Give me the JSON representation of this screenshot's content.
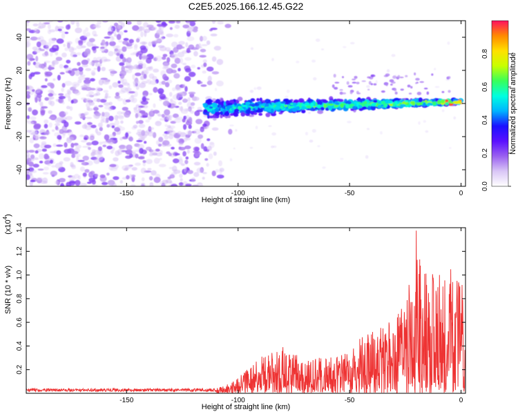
{
  "title": "C2E5.2025.166.12.45.G22",
  "chart_data": [
    {
      "type": "heatmap",
      "xlabel": "Height of straight line (km)",
      "ylabel": "Frequency (Hz)",
      "xlim": [
        -195,
        2
      ],
      "ylim": [
        -50,
        50
      ],
      "xticks": [
        -150,
        -100,
        -50,
        0
      ],
      "yticks": [
        -40,
        -20,
        0,
        20,
        40
      ],
      "colorbar": {
        "label": "Normalized spectral amplitude",
        "range": [
          0.0,
          1.0
        ],
        "ticks": [
          "0.0",
          "0.2",
          "0.4",
          "0.6",
          "0.8"
        ],
        "colormap": [
          "#ffffff",
          "#d9c6f6",
          "#9a60f0",
          "#5a10ff",
          "#1a10ff",
          "#00b4ff",
          "#00ffe0",
          "#38ff5a",
          "#c8ff00",
          "#ffe000",
          "#ff8a00",
          "#ff1060"
        ]
      },
      "features": [
        {
          "name": "noise",
          "x_range": [
            -195,
            -105
          ],
          "freq_range": [
            -50,
            50
          ],
          "amplitude": 0.1
        },
        {
          "name": "signal_trace",
          "x_range": [
            -115,
            0
          ],
          "freq_center": [
            -3,
            1
          ],
          "freq_halfwidth": [
            7,
            2
          ],
          "amplitude_range": [
            0.15,
            0.95
          ]
        }
      ]
    },
    {
      "type": "line",
      "xlabel": "Height of straight line (km)",
      "ylabel": "SNR (10 * v/v)",
      "yscale_label": "(x10",
      "yscale_exp": "4",
      "line_color": "#ee3333",
      "xlim": [
        -195,
        2
      ],
      "ylim": [
        0,
        1.4
      ],
      "xticks": [
        -150,
        -100,
        -50,
        0
      ],
      "yticks": [
        "0.2",
        "0.4",
        "0.6",
        "0.8",
        "1.0",
        "1.2",
        "1.4"
      ],
      "envelope": {
        "x": [
          -195,
          -110,
          -105,
          -100,
          -95,
          -90,
          -85,
          -80,
          -75,
          -70,
          -65,
          -60,
          -55,
          -50,
          -45,
          -40,
          -35,
          -30,
          -27,
          -25,
          -22,
          -20,
          -18,
          -15,
          -12,
          -10,
          -8,
          -5,
          -3,
          0,
          2
        ],
        "y": [
          0.04,
          0.04,
          0.08,
          0.13,
          0.22,
          0.3,
          0.38,
          0.4,
          0.36,
          0.32,
          0.3,
          0.34,
          0.33,
          0.36,
          0.48,
          0.52,
          0.58,
          0.72,
          0.78,
          0.85,
          1.05,
          1.4,
          1.2,
          1.15,
          1.08,
          1.05,
          0.95,
          1.0,
          1.3,
          1.25,
          1.1
        ]
      }
    }
  ]
}
